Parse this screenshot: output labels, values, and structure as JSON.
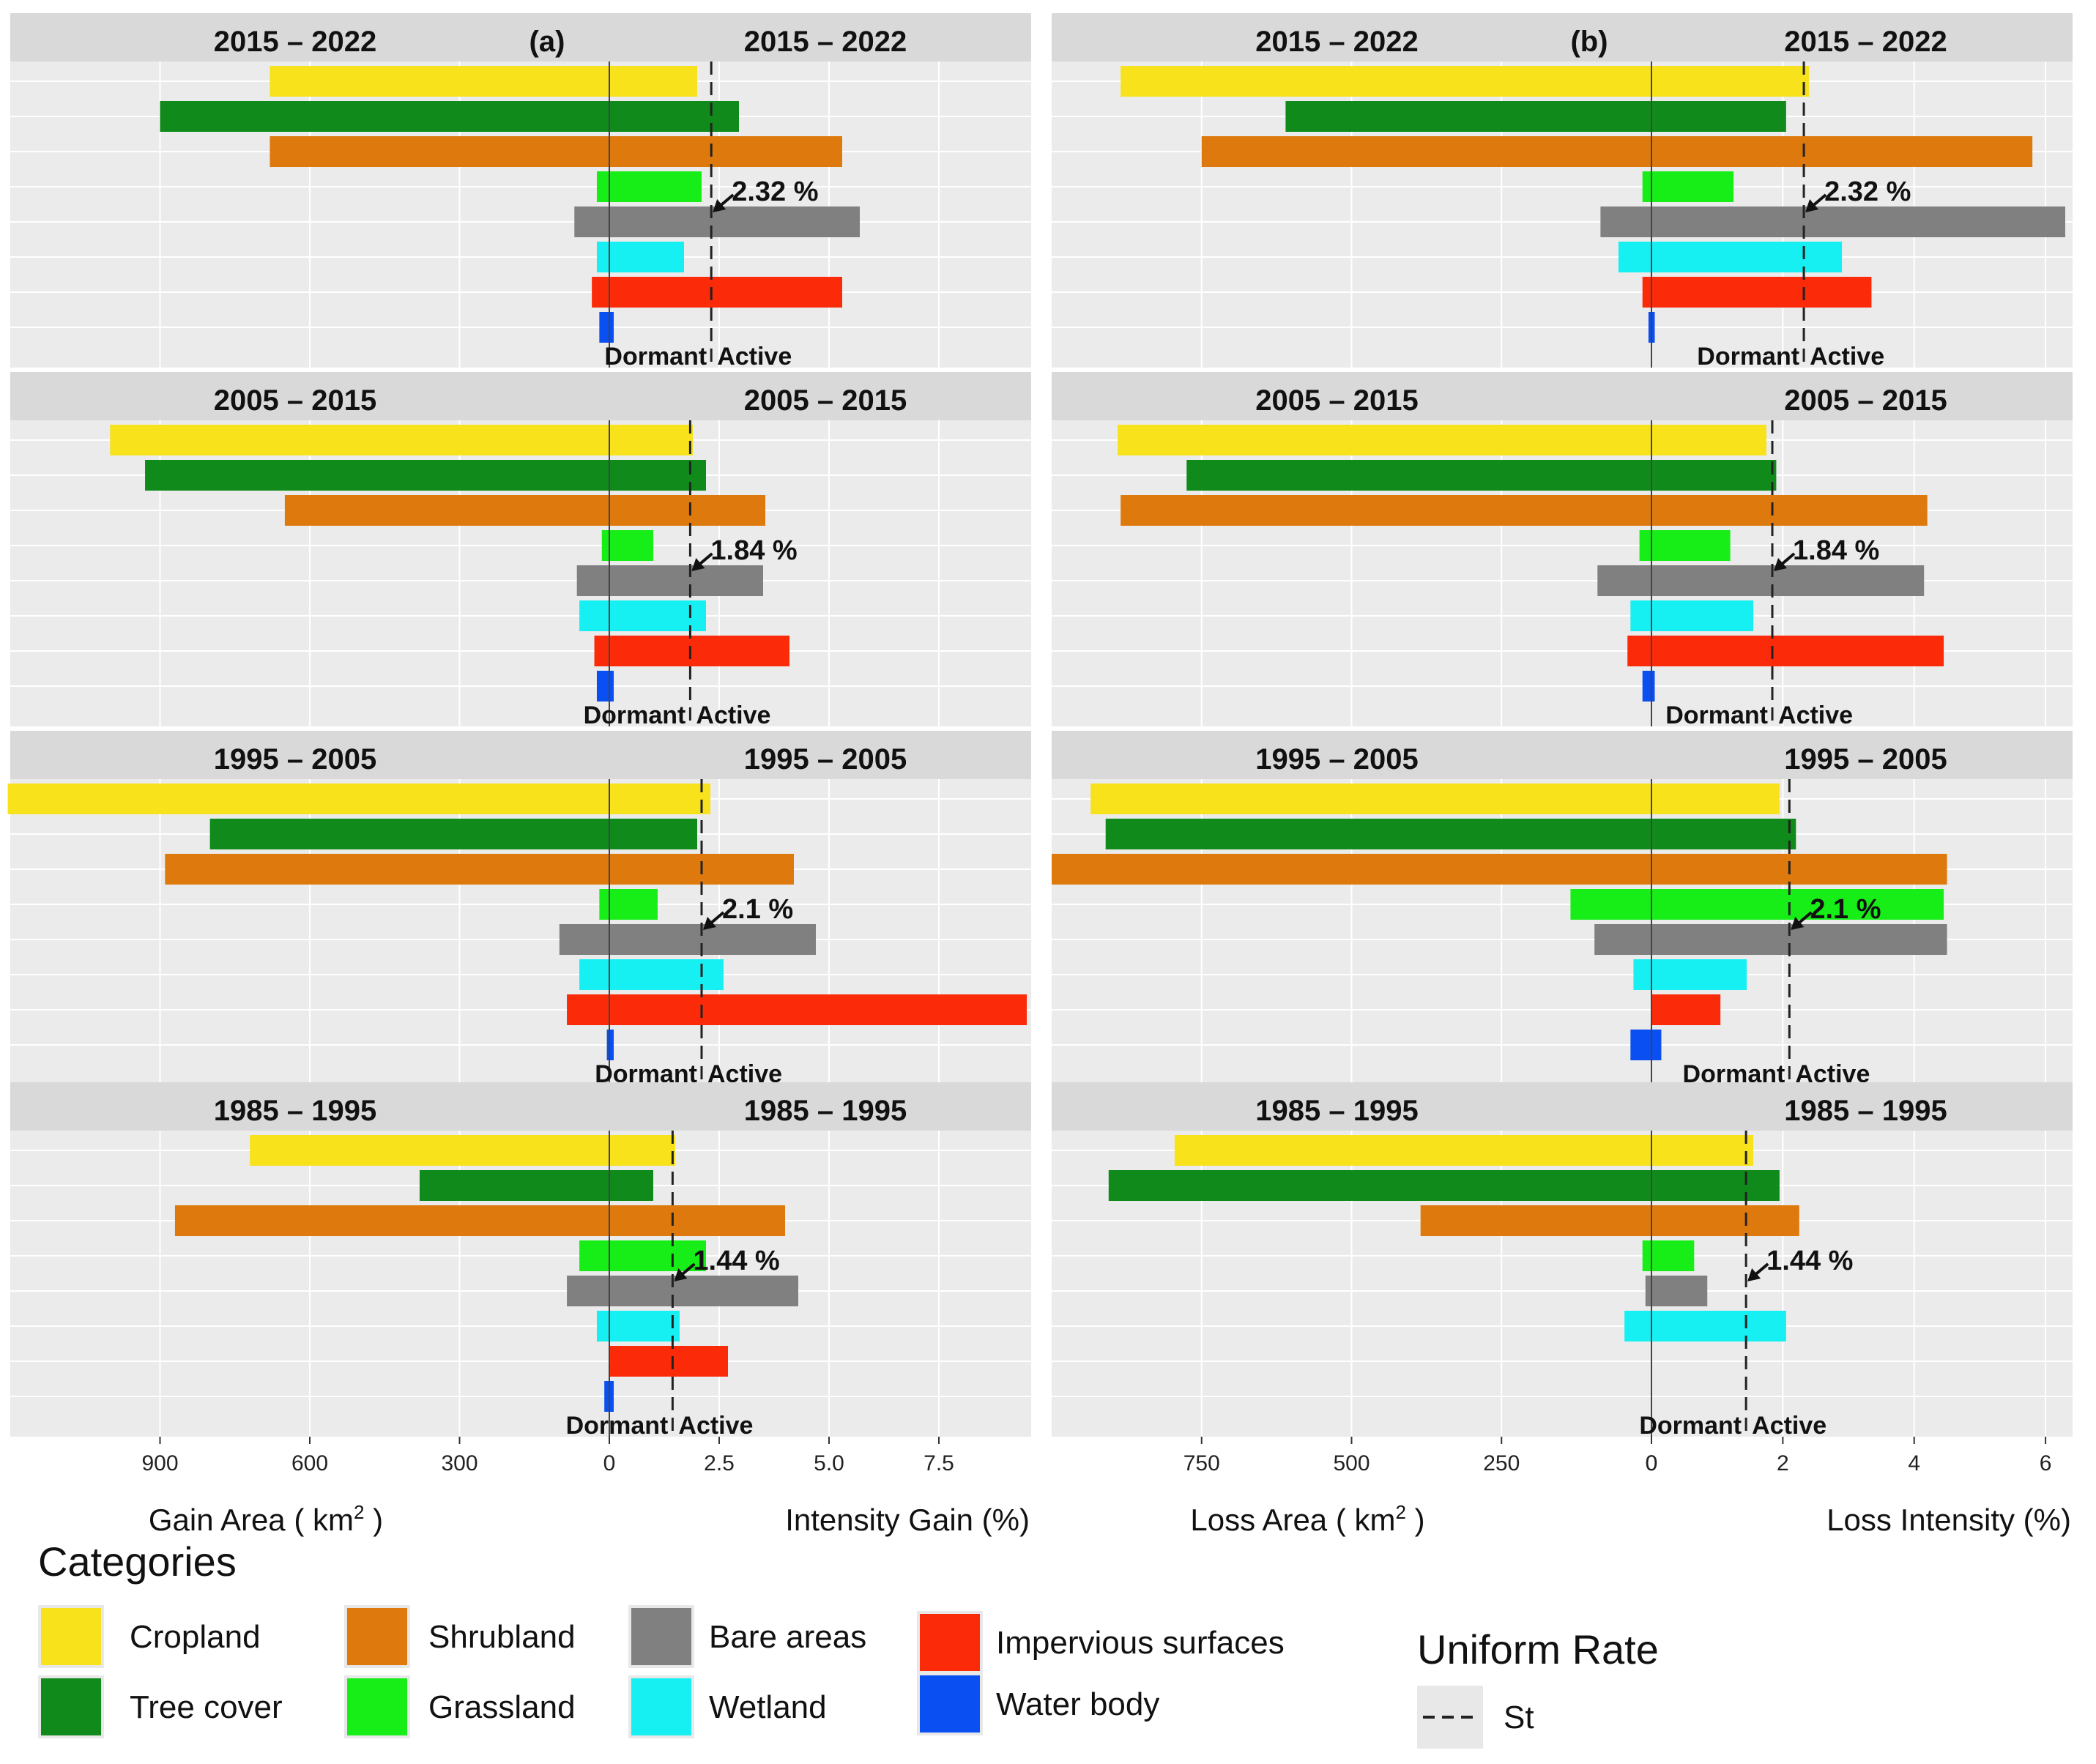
{
  "chart_data": {
    "type": "bar",
    "description_units": {
      "area": "km2",
      "intensity": "percent"
    },
    "categories": [
      "Cropland",
      "Tree cover",
      "Shrubland",
      "Grassland",
      "Bare areas",
      "Wetland",
      "Impervious surfaces",
      "Water body"
    ],
    "colors": {
      "Cropland": "#f7e21b",
      "Tree cover": "#108a1b",
      "Shrubland": "#de7a0d",
      "Grassland": "#17ee17",
      "Bare areas": "#808080",
      "Wetland": "#17f0f2",
      "Impervious surfaces": "#fb2a09",
      "Water body": "#0a4ff2"
    },
    "panels": [
      {
        "id": "a",
        "label": "(a)",
        "left_axis_title": "Gain Area ( km",
        "right_axis_title": "Intensity Gain (%)",
        "area_ticks": [
          "900",
          "600",
          "300",
          "0"
        ],
        "area_tick_values": [
          900,
          600,
          300,
          0
        ],
        "intensity_ticks": [
          "2.5",
          "5.0",
          "7.5"
        ],
        "intensity_tick_values": [
          2.5,
          5.0,
          7.5
        ],
        "area_range": [
          1200,
          0
        ],
        "intensity_range": [
          0,
          9.5
        ],
        "intervals": [
          {
            "label": "2015 – 2022",
            "uniform_rate": 2.32,
            "rate_label": "2.32 %",
            "area": [
              680,
              900,
              680,
              25,
              70,
              25,
              35,
              20
            ],
            "intensity": [
              2.0,
              2.95,
              5.3,
              2.1,
              5.7,
              1.7,
              5.3,
              0.1
            ]
          },
          {
            "label": "2005 – 2015",
            "uniform_rate": 1.84,
            "rate_label": "1.84 %",
            "area": [
              1000,
              930,
              650,
              15,
              65,
              60,
              30,
              25
            ],
            "intensity": [
              1.9,
              2.2,
              3.55,
              1.0,
              3.5,
              2.2,
              4.1,
              0.1
            ]
          },
          {
            "label": "1995 – 2005",
            "uniform_rate": 2.1,
            "rate_label": "2.1 %",
            "area": [
              1205,
              800,
              890,
              20,
              100,
              60,
              85,
              5
            ],
            "intensity": [
              2.3,
              2.0,
              4.2,
              1.1,
              4.7,
              2.6,
              9.5,
              0.1
            ]
          },
          {
            "label": "1985 – 1995",
            "uniform_rate": 1.44,
            "rate_label": "1.44 %",
            "area": [
              720,
              380,
              870,
              60,
              85,
              25,
              0,
              10
            ],
            "intensity": [
              1.5,
              1.0,
              4.0,
              2.2,
              4.3,
              1.6,
              2.7,
              0.1
            ]
          }
        ]
      },
      {
        "id": "b",
        "label": "(b)",
        "left_axis_title": "Loss Area ( km",
        "right_axis_title": "Loss Intensity (%)",
        "area_ticks": [
          "750",
          "500",
          "250",
          "0"
        ],
        "area_tick_values": [
          750,
          500,
          250,
          0
        ],
        "intensity_ticks": [
          "0",
          "2",
          "4",
          "6"
        ],
        "intensity_tick_values": [
          0,
          2,
          4,
          6
        ],
        "area_range": [
          1000,
          0
        ],
        "intensity_range": [
          0,
          6.3
        ],
        "intervals": [
          {
            "label": "2015 – 2022",
            "uniform_rate": 2.32,
            "rate_label": "2.32 %",
            "area": [
              885,
              610,
              750,
              15,
              85,
              55,
              15,
              5
            ],
            "intensity": [
              2.4,
              2.05,
              5.8,
              1.25,
              6.3,
              2.9,
              3.35,
              0.05
            ]
          },
          {
            "label": "2005 – 2015",
            "uniform_rate": 1.84,
            "rate_label": "1.84 %",
            "area": [
              890,
              775,
              885,
              20,
              90,
              35,
              40,
              15
            ],
            "intensity": [
              1.75,
              1.9,
              4.2,
              1.2,
              4.15,
              1.55,
              4.45,
              0.05
            ]
          },
          {
            "label": "1995 – 2005",
            "uniform_rate": 2.1,
            "rate_label": "2.1 %",
            "area": [
              935,
              910,
              1000,
              135,
              95,
              30,
              0,
              35
            ],
            "intensity": [
              1.95,
              2.2,
              4.5,
              4.45,
              4.5,
              1.45,
              1.05,
              0.15
            ]
          },
          {
            "label": "1985 – 1995",
            "uniform_rate": 1.44,
            "rate_label": "1.44 %",
            "area": [
              795,
              905,
              385,
              15,
              10,
              45,
              0,
              0
            ],
            "intensity": [
              1.55,
              1.95,
              2.25,
              0.65,
              0.85,
              2.05,
              0,
              0
            ]
          }
        ]
      }
    ],
    "zone_labels": {
      "dormant": "Dormant",
      "active": "Active"
    },
    "legend": {
      "title": "Categories",
      "uniform_rate_title": "Uniform Rate",
      "uniform_rate_label": "St"
    }
  }
}
